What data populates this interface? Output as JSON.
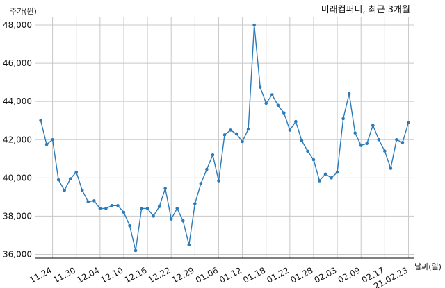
{
  "chart_data": {
    "type": "line",
    "title": "미래컴퍼니, 최근 3개월",
    "ylabel": "주가(원)",
    "xlabel": "날짜(일)",
    "ylim": [
      35800,
      48400
    ],
    "yticks": [
      36000,
      38000,
      40000,
      42000,
      44000,
      46000,
      48000
    ],
    "ytick_labels": [
      "36,000",
      "38,000",
      "40,000",
      "42,000",
      "44,000",
      "46,000",
      "48,000"
    ],
    "xlim": [
      -1,
      63
    ],
    "xticks": [
      2,
      6,
      10,
      14,
      18,
      22,
      26,
      30,
      34,
      38,
      42,
      46,
      50,
      54,
      58,
      62
    ],
    "xtick_labels": [
      "11.24",
      "11.30",
      "12.04",
      "12.10",
      "12.16",
      "12.22",
      "12.29",
      "01.06",
      "01.12",
      "01.18",
      "01.22",
      "01.28",
      "02.03",
      "02.09",
      "02.17",
      "21.02.23"
    ],
    "grid": true,
    "color": "#2b7bb9",
    "series": [
      {
        "x": [
          0,
          1,
          2,
          3,
          4,
          5,
          6,
          7,
          8,
          9,
          10,
          11,
          12,
          13,
          14,
          15,
          16,
          17,
          18,
          19,
          20,
          21,
          22,
          23,
          24,
          25,
          26,
          27,
          28,
          29,
          30,
          31,
          32,
          33,
          34,
          35,
          36,
          37,
          38,
          39,
          40,
          41,
          42,
          43,
          44,
          45,
          46,
          47,
          48,
          49,
          50,
          51,
          52,
          53,
          54,
          55,
          56,
          57,
          58,
          59,
          60,
          61,
          62
        ],
        "values": [
          43000,
          41750,
          42000,
          39900,
          39350,
          39950,
          40300,
          39350,
          38750,
          38800,
          38400,
          38400,
          38550,
          38550,
          38200,
          37500,
          36200,
          38400,
          38400,
          38000,
          38500,
          39450,
          37850,
          38400,
          37750,
          36500,
          38650,
          39700,
          40450,
          41200,
          39850,
          42250,
          42500,
          42300,
          41900,
          42550,
          48000,
          44750,
          43900,
          44350,
          43800,
          43400,
          42500,
          42950,
          41950,
          41400,
          40950,
          39850,
          40200,
          40000,
          40300,
          43100,
          44400,
          42350,
          41700,
          41800,
          42750,
          42000,
          41400,
          40500,
          42000,
          41850,
          42900
        ]
      }
    ]
  }
}
